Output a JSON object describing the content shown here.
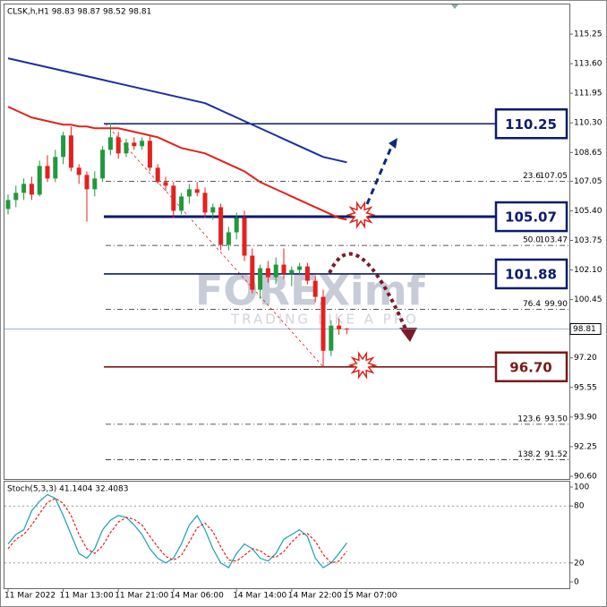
{
  "chart_data": [
    {
      "type": "candlestick",
      "title": "CLSK,h,H1  98.83 98.87 98.52 98.81",
      "categories": [
        "11 Mar 2022",
        null,
        null,
        null,
        null,
        null,
        null,
        "11 Mar 13:00",
        null,
        null,
        null,
        null,
        null,
        null,
        "11 Mar 21:00",
        null,
        null,
        null,
        null,
        null,
        null,
        "14 Mar 06:00",
        null,
        null,
        null,
        null,
        null,
        null,
        null,
        "14 Mar 14:00",
        null,
        null,
        null,
        null,
        null,
        null,
        "14 Mar 22:00",
        null,
        null,
        null,
        null,
        null,
        null,
        "15 Mar 07:00"
      ],
      "candles": [
        [
          105.5,
          106.3,
          105.2,
          106.0
        ],
        [
          106.0,
          106.8,
          105.6,
          106.4
        ],
        [
          106.4,
          107.2,
          106.0,
          106.9
        ],
        [
          106.9,
          107.3,
          106.0,
          106.3
        ],
        [
          106.3,
          108.2,
          106.2,
          107.9
        ],
        [
          107.9,
          108.5,
          107.0,
          107.2
        ],
        [
          107.2,
          108.8,
          107.0,
          108.4
        ],
        [
          108.4,
          109.8,
          108.0,
          109.6
        ],
        [
          109.6,
          110.1,
          107.6,
          107.8
        ],
        [
          107.8,
          108.0,
          106.9,
          107.4
        ],
        [
          107.4,
          107.6,
          104.8,
          106.6
        ],
        [
          106.6,
          107.6,
          106.2,
          107.2
        ],
        [
          107.2,
          109.0,
          107.0,
          108.8
        ],
        [
          108.8,
          110.3,
          108.5,
          109.5
        ],
        [
          109.5,
          109.8,
          108.3,
          108.6
        ],
        [
          108.6,
          109.4,
          108.4,
          109.2
        ],
        [
          109.2,
          109.5,
          108.8,
          109.0
        ],
        [
          109.0,
          109.5,
          108.8,
          109.3
        ],
        [
          109.3,
          109.6,
          107.6,
          107.8
        ],
        [
          107.8,
          108.0,
          106.9,
          107.0
        ],
        [
          107.0,
          107.3,
          106.5,
          106.8
        ],
        [
          106.8,
          107.0,
          105.0,
          105.4
        ],
        [
          105.4,
          106.4,
          105.2,
          106.2
        ],
        [
          106.2,
          106.9,
          105.8,
          106.6
        ],
        [
          106.6,
          107.0,
          106.2,
          106.4
        ],
        [
          106.4,
          106.7,
          105.0,
          105.3
        ],
        [
          105.3,
          105.8,
          104.9,
          105.6
        ],
        [
          105.6,
          105.8,
          103.2,
          103.5
        ],
        [
          103.5,
          104.5,
          103.2,
          104.2
        ],
        [
          104.2,
          105.3,
          103.8,
          105.0
        ],
        [
          105.0,
          105.4,
          102.6,
          102.9
        ],
        [
          102.9,
          103.3,
          100.8,
          101.0
        ],
        [
          101.0,
          102.4,
          100.5,
          102.2
        ],
        [
          102.2,
          102.6,
          101.4,
          101.7
        ],
        [
          101.7,
          102.8,
          101.3,
          102.4
        ],
        [
          102.4,
          103.3,
          101.6,
          101.9
        ],
        [
          101.9,
          102.3,
          101.2,
          102.1
        ],
        [
          102.1,
          102.5,
          101.8,
          102.3
        ],
        [
          102.3,
          102.5,
          101.3,
          101.5
        ],
        [
          101.5,
          101.8,
          100.3,
          100.6
        ],
        [
          100.6,
          101.0,
          96.7,
          97.6
        ],
        [
          97.6,
          99.3,
          97.3,
          99.0
        ],
        [
          99.0,
          99.4,
          98.5,
          98.8
        ],
        [
          98.83,
          98.87,
          98.52,
          98.81
        ]
      ],
      "up_color": "#1f9a3c",
      "down_color": "#e3211f",
      "moving_averages": [
        {
          "color": "#1c2fa3",
          "values": [
            113.9,
            113.8,
            113.7,
            113.6,
            113.5,
            113.4,
            113.3,
            113.2,
            113.1,
            113.0,
            112.9,
            112.8,
            112.7,
            112.6,
            112.5,
            112.4,
            112.3,
            112.2,
            112.1,
            112.0,
            111.9,
            111.8,
            111.7,
            111.6,
            111.5,
            111.4,
            111.2,
            111.0,
            110.8,
            110.6,
            110.4,
            110.2,
            110.0,
            109.8,
            109.6,
            109.4,
            109.2,
            109.0,
            108.8,
            108.6,
            108.4,
            108.3,
            108.2,
            108.1
          ]
        },
        {
          "color": "#e0231c",
          "values": [
            111.2,
            111.0,
            110.8,
            110.6,
            110.5,
            110.4,
            110.3,
            110.2,
            110.2,
            110.1,
            110.1,
            110.0,
            110.0,
            110.0,
            110.0,
            109.9,
            109.8,
            109.7,
            109.6,
            109.5,
            109.3,
            109.1,
            108.9,
            108.8,
            108.7,
            108.6,
            108.4,
            108.2,
            108.0,
            107.8,
            107.6,
            107.3,
            107.0,
            106.8,
            106.6,
            106.4,
            106.2,
            106.0,
            105.8,
            105.6,
            105.4,
            105.2,
            105.0,
            104.9
          ]
        }
      ],
      "ylim": [
        90.45,
        116.9
      ],
      "yticks": [
        115.25,
        {
          "value": 113.6,
          "label": "113.60"
        },
        111.95,
        {
          "value": 110.3,
          "label": "110.30"
        },
        108.65,
        107.05,
        {
          "value": 105.4,
          "label": "105.40"
        },
        103.75,
        {
          "value": 102.1,
          "label": "102.10"
        },
        100.45,
        {
          "value": 97.2,
          "label": "97.20"
        },
        95.55,
        {
          "value": 93.9,
          "label": "93.90"
        },
        92.25,
        {
          "value": 90.6,
          "label": "90.60"
        }
      ],
      "last_price": 98.81,
      "fib_levels": [
        {
          "ratio": "23.6",
          "value": 107.05,
          "label": "107.05"
        },
        {
          "ratio": "50.0",
          "value": 103.47,
          "label": "103.47"
        },
        {
          "ratio": "76.4",
          "value": 99.9,
          "label": "99.90"
        },
        {
          "ratio": "123.6",
          "value": 93.5,
          "label": "93.50"
        },
        {
          "ratio": "138.2",
          "value": 91.52,
          "label": "91.52"
        }
      ],
      "key_levels": [
        {
          "value": 110.25,
          "label": "110.25",
          "color": "#0d1b6b"
        },
        {
          "value": 105.07,
          "label": "105.07",
          "color": "#0d1b6b"
        },
        {
          "value": 101.88,
          "label": "101.88",
          "color": "#0d1b6b"
        },
        {
          "value": 96.7,
          "label": "96.70",
          "color": "#7a1a1a"
        }
      ],
      "watermark": [
        "FOREXimf",
        "TRADING LIKE A PRO"
      ]
    },
    {
      "type": "line",
      "title": "Stoch(5,3,3) 41.1404 32.4083",
      "series": [
        {
          "color": "#1aa0b0",
          "dashed": false,
          "values": [
            40,
            50,
            55,
            75,
            85,
            92,
            88,
            70,
            50,
            30,
            25,
            35,
            55,
            65,
            70,
            68,
            60,
            50,
            35,
            25,
            20,
            25,
            40,
            60,
            70,
            55,
            35,
            20,
            15,
            30,
            40,
            35,
            25,
            22,
            30,
            45,
            50,
            55,
            48,
            25,
            15,
            20,
            30,
            41.1404
          ]
        },
        {
          "color": "#e0231c",
          "dashed": true,
          "values": [
            35,
            45,
            50,
            60,
            72,
            84,
            88,
            83,
            70,
            50,
            35,
            30,
            38,
            52,
            63,
            68,
            66,
            60,
            48,
            37,
            27,
            23,
            28,
            42,
            57,
            62,
            53,
            37,
            23,
            22,
            28,
            35,
            33,
            27,
            26,
            32,
            42,
            50,
            51,
            43,
            29,
            20,
            22,
            32.4083
          ]
        }
      ],
      "ylim": [
        -6.6,
        106.6
      ],
      "yticks": [
        100,
        80,
        20,
        0
      ]
    }
  ]
}
